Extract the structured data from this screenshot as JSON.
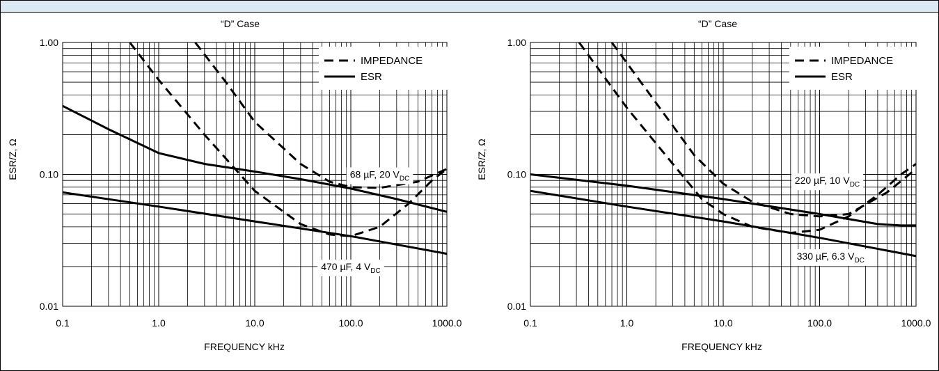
{
  "chart_data": [
    {
      "type": "line",
      "title": "“D” Case",
      "xlabel": "FREQUENCY kHz",
      "ylabel": "ESR/Z, Ω",
      "xscale": "log",
      "yscale": "log",
      "xlim": [
        0.1,
        1000
      ],
      "ylim": [
        0.01,
        1
      ],
      "x_ticks": [
        "0.1",
        "1.0",
        "10.0",
        "100.0",
        "1000.0"
      ],
      "y_ticks": [
        "0.01",
        "0.10",
        "1.00"
      ],
      "grid": true,
      "legend": {
        "position": "top-right",
        "entries": [
          {
            "label": "IMPEDANCE",
            "style": "dashed"
          },
          {
            "label": "ESR",
            "style": "solid"
          }
        ]
      },
      "annotations": [
        {
          "text": "68 µF, 20 V",
          "sub": "DC",
          "x": 200,
          "y": 0.1
        },
        {
          "text": "470 µF, 4 V",
          "sub": "DC",
          "x": 100,
          "y": 0.02
        }
      ],
      "series": [
        {
          "style": "dashed",
          "points": [
            [
              2.4,
              1.0
            ],
            [
              5,
              0.5
            ],
            [
              10,
              0.25
            ],
            [
              30,
              0.12
            ],
            [
              60,
              0.088
            ],
            [
              100,
              0.08
            ],
            [
              200,
              0.079
            ],
            [
              500,
              0.088
            ],
            [
              1000,
              0.11
            ]
          ]
        },
        {
          "style": "solid",
          "points": [
            [
              0.1,
              0.33
            ],
            [
              0.3,
              0.22
            ],
            [
              1,
              0.145
            ],
            [
              3,
              0.12
            ],
            [
              10,
              0.105
            ],
            [
              30,
              0.092
            ],
            [
              100,
              0.078
            ],
            [
              300,
              0.065
            ],
            [
              1000,
              0.052
            ]
          ]
        },
        {
          "style": "dashed",
          "points": [
            [
              0.5,
              1.0
            ],
            [
              1,
              0.52
            ],
            [
              3,
              0.2
            ],
            [
              10,
              0.075
            ],
            [
              30,
              0.042
            ],
            [
              60,
              0.035
            ],
            [
              100,
              0.034
            ],
            [
              200,
              0.04
            ],
            [
              400,
              0.06
            ],
            [
              700,
              0.09
            ],
            [
              1000,
              0.11
            ]
          ]
        },
        {
          "style": "solid",
          "points": [
            [
              0.1,
              0.073
            ],
            [
              1,
              0.057
            ],
            [
              10,
              0.044
            ],
            [
              100,
              0.034
            ],
            [
              1000,
              0.025
            ]
          ]
        }
      ]
    },
    {
      "type": "line",
      "title": "“D” Case",
      "xlabel": "FREQUENCY kHz",
      "ylabel": "ESR/Z, Ω",
      "xscale": "log",
      "yscale": "log",
      "xlim": [
        0.1,
        1000
      ],
      "ylim": [
        0.01,
        1
      ],
      "x_ticks": [
        "0.1",
        "1.0",
        "10.0",
        "100.0",
        "1000.0"
      ],
      "y_ticks": [
        "0.01",
        "0.10",
        "1.00"
      ],
      "grid": true,
      "legend": {
        "position": "top-right",
        "entries": [
          {
            "label": "IMPEDANCE",
            "style": "dashed"
          },
          {
            "label": "ESR",
            "style": "solid"
          }
        ]
      },
      "annotations": [
        {
          "text": "220 µF, 10 V",
          "sub": "DC",
          "x": 120,
          "y": 0.09
        },
        {
          "text": "330 µF, 6.3 V",
          "sub": "DC",
          "x": 130,
          "y": 0.024
        }
      ],
      "series": [
        {
          "style": "dashed",
          "points": [
            [
              0.32,
              1.0
            ],
            [
              1,
              0.32
            ],
            [
              3,
              0.12
            ],
            [
              6,
              0.065
            ],
            [
              10,
              0.05
            ],
            [
              20,
              0.04
            ],
            [
              50,
              0.036
            ],
            [
              100,
              0.038
            ],
            [
              200,
              0.048
            ],
            [
              400,
              0.07
            ],
            [
              700,
              0.1
            ],
            [
              1000,
              0.12
            ]
          ]
        },
        {
          "style": "dashed",
          "points": [
            [
              0.7,
              1.0
            ],
            [
              2,
              0.35
            ],
            [
              5,
              0.14
            ],
            [
              10,
              0.085
            ],
            [
              20,
              0.062
            ],
            [
              50,
              0.05
            ],
            [
              100,
              0.048
            ],
            [
              200,
              0.05
            ],
            [
              500,
              0.073
            ],
            [
              1000,
              0.11
            ]
          ]
        },
        {
          "style": "solid",
          "points": [
            [
              0.1,
              0.1
            ],
            [
              1,
              0.082
            ],
            [
              10,
              0.065
            ],
            [
              100,
              0.05
            ],
            [
              400,
              0.042
            ],
            [
              700,
              0.041
            ],
            [
              1000,
              0.041
            ]
          ]
        },
        {
          "style": "solid",
          "points": [
            [
              0.1,
              0.075
            ],
            [
              1,
              0.057
            ],
            [
              10,
              0.044
            ],
            [
              100,
              0.033
            ],
            [
              1000,
              0.024
            ]
          ]
        }
      ]
    }
  ]
}
